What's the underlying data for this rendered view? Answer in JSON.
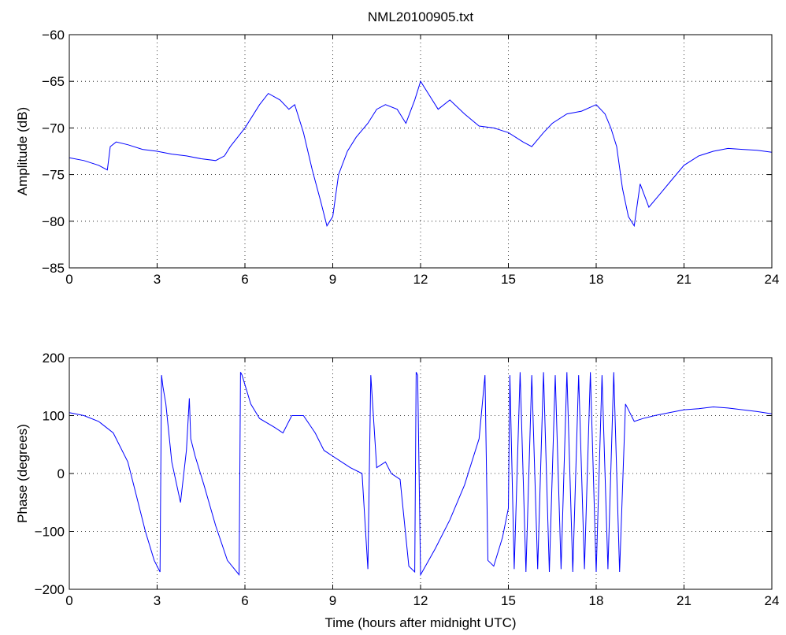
{
  "figure": {
    "title": "NML20100905.txt",
    "line_color": "#0000ff"
  },
  "chart_data": [
    {
      "type": "line",
      "title": "NML20100905.txt",
      "xlabel": "",
      "ylabel": "Amplitude (dB)",
      "xlim": [
        0,
        24
      ],
      "ylim": [
        -85,
        -60
      ],
      "xticks": [
        0,
        3,
        6,
        9,
        12,
        15,
        18,
        21,
        24
      ],
      "yticks": [
        -85,
        -80,
        -75,
        -70,
        -65,
        -60
      ],
      "xtick_labels": [
        "0",
        "3",
        "6",
        "9",
        "12",
        "15",
        "18",
        "21",
        "24"
      ],
      "ytick_labels": [
        "−85",
        "−80",
        "−75",
        "−70",
        "−65",
        "−60"
      ],
      "grid": true,
      "series": [
        {
          "x": [
            0,
            0.5,
            1.0,
            1.3,
            1.4,
            1.6,
            2.0,
            2.5,
            3.0,
            3.5,
            4.0,
            4.5,
            5.0,
            5.3,
            5.5,
            6.0,
            6.5,
            6.8,
            7.2,
            7.5,
            7.7,
            8.0,
            8.3,
            8.6,
            8.8,
            9.0,
            9.2,
            9.5,
            9.8,
            10.2,
            10.5,
            10.8,
            11.2,
            11.5,
            11.8,
            12.0,
            12.3,
            12.6,
            13.0,
            13.5,
            14.0,
            14.5,
            15.0,
            15.5,
            15.8,
            16.2,
            16.5,
            17.0,
            17.5,
            18.0,
            18.3,
            18.5,
            18.7,
            18.9,
            19.1,
            19.3,
            19.5,
            19.8,
            20.2,
            20.6,
            21.0,
            21.5,
            22.0,
            22.5,
            23.0,
            23.5,
            24.0
          ],
          "y": [
            -73.2,
            -73.5,
            -74.0,
            -74.5,
            -72.0,
            -71.5,
            -71.8,
            -72.3,
            -72.5,
            -72.8,
            -73.0,
            -73.3,
            -73.5,
            -73.0,
            -72.0,
            -70.0,
            -67.5,
            -66.3,
            -67.0,
            -68.0,
            -67.5,
            -70.5,
            -74.5,
            -78.0,
            -80.5,
            -79.5,
            -75.0,
            -72.5,
            -71.0,
            -69.5,
            -68.0,
            -67.5,
            -68.0,
            -69.5,
            -67.0,
            -65.0,
            -66.5,
            -68.0,
            -67.0,
            -68.5,
            -69.8,
            -70.0,
            -70.5,
            -71.5,
            -72.0,
            -70.5,
            -69.5,
            -68.5,
            -68.2,
            -67.5,
            -68.5,
            -70.0,
            -72.0,
            -76.5,
            -79.5,
            -80.5,
            -76.0,
            -78.5,
            -77.0,
            -75.5,
            -74.0,
            -73.0,
            -72.5,
            -72.2,
            -72.3,
            -72.4,
            -72.6
          ]
        }
      ]
    },
    {
      "type": "line",
      "title": "",
      "xlabel": "Time (hours after midnight UTC)",
      "ylabel": "Phase (degrees)",
      "xlim": [
        0,
        24
      ],
      "ylim": [
        -200,
        200
      ],
      "xticks": [
        0,
        3,
        6,
        9,
        12,
        15,
        18,
        21,
        24
      ],
      "yticks": [
        -200,
        -100,
        0,
        100,
        200
      ],
      "xtick_labels": [
        "0",
        "3",
        "6",
        "9",
        "12",
        "15",
        "18",
        "21",
        "24"
      ],
      "ytick_labels": [
        "−200",
        "−100",
        "0",
        "100",
        "200"
      ],
      "grid": true,
      "series": [
        {
          "x": [
            0,
            0.5,
            1.0,
            1.5,
            2.0,
            2.3,
            2.6,
            2.9,
            3.1,
            3.15,
            3.2,
            3.3,
            3.5,
            3.8,
            4.0,
            4.1,
            4.15,
            4.3,
            4.6,
            5.0,
            5.4,
            5.8,
            5.85,
            5.9,
            6.2,
            6.5,
            7.0,
            7.3,
            7.6,
            8.0,
            8.4,
            8.7,
            9.0,
            9.3,
            9.6,
            10.0,
            10.2,
            10.3,
            10.5,
            10.8,
            11.0,
            11.3,
            11.6,
            11.8,
            11.85,
            11.9,
            12.0,
            12.5,
            13.0,
            13.5,
            14.0,
            14.2,
            14.3,
            14.5,
            14.8,
            15.0,
            15.05,
            15.2,
            15.4,
            15.6,
            15.8,
            16.0,
            16.2,
            16.4,
            16.6,
            16.8,
            17.0,
            17.2,
            17.4,
            17.6,
            17.8,
            18.0,
            18.2,
            18.4,
            18.6,
            18.8,
            19.0,
            19.3,
            19.6,
            20.0,
            20.5,
            21.0,
            21.5,
            22.0,
            22.5,
            23.0,
            23.5,
            24.0
          ],
          "y": [
            105,
            100,
            90,
            70,
            20,
            -40,
            -100,
            -150,
            -170,
            170,
            150,
            120,
            20,
            -50,
            40,
            130,
            60,
            30,
            -20,
            -90,
            -150,
            -175,
            175,
            170,
            120,
            95,
            80,
            70,
            100,
            100,
            70,
            40,
            30,
            20,
            10,
            0,
            -165,
            170,
            10,
            20,
            0,
            -10,
            -160,
            -170,
            175,
            170,
            -175,
            -130,
            -80,
            -20,
            60,
            170,
            -150,
            -160,
            -110,
            -60,
            170,
            -165,
            175,
            -170,
            170,
            -165,
            175,
            -170,
            170,
            -165,
            175,
            -170,
            170,
            -165,
            175,
            -170,
            170,
            -165,
            175,
            -170,
            120,
            90,
            95,
            100,
            105,
            110,
            112,
            115,
            113,
            110,
            107,
            103
          ]
        }
      ]
    }
  ]
}
